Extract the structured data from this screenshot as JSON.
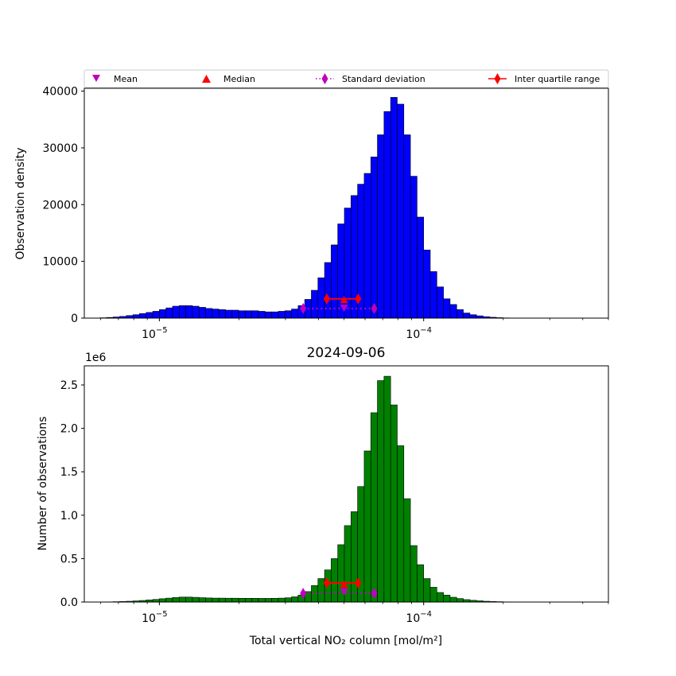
{
  "legend": {
    "items": [
      {
        "label": "Mean",
        "marker": "triangle-down",
        "color": "#bf00bf",
        "line": "none"
      },
      {
        "label": "Median",
        "marker": "triangle-up",
        "color": "#ff0000",
        "line": "none"
      },
      {
        "label": "Standard deviation",
        "marker": "thin-diamond",
        "color": "#bf00bf",
        "line": "dotted"
      },
      {
        "label": "Inter quartile range",
        "marker": "thin-diamond",
        "color": "#ff0000",
        "line": "solid"
      }
    ]
  },
  "chart_data": [
    {
      "type": "bar",
      "subtype": "histogram",
      "title": "",
      "xlabel": "",
      "ylabel": "Observation density",
      "xscale": "log",
      "xlim": [
        5.2e-06,
        0.0005
      ],
      "ylim": [
        0,
        40500
      ],
      "yticks": [
        0,
        10000,
        20000,
        30000,
        40000
      ],
      "ytick_labels": [
        "0",
        "10000",
        "20000",
        "30000",
        "40000"
      ],
      "xticks": [
        1e-05,
        0.0001
      ],
      "xtick_labels": [
        {
          "base": "10",
          "exp": "−5"
        },
        {
          "base": "10",
          "exp": "−4"
        }
      ],
      "offset_text": "",
      "bar_color": "#0000ff",
      "edge_color": "#000000",
      "x_start_log10": -5.25,
      "bin_width_log10": 0.025,
      "values": [
        20,
        60,
        120,
        200,
        300,
        450,
        600,
        800,
        1000,
        1200,
        1500,
        1800,
        2100,
        2200,
        2200,
        2100,
        1900,
        1700,
        1600,
        1500,
        1400,
        1400,
        1300,
        1300,
        1300,
        1200,
        1100,
        1100,
        1200,
        1300,
        1600,
        2200,
        3300,
        4900,
        7100,
        9800,
        12900,
        16600,
        19400,
        21600,
        23600,
        25500,
        28400,
        32300,
        36400,
        38900,
        37700,
        32300,
        25000,
        17800,
        12000,
        8200,
        5500,
        3400,
        2400,
        1500,
        900,
        600,
        400,
        250,
        150,
        80,
        40,
        20
      ],
      "markers": {
        "mean": {
          "x": 5e-05,
          "y": 1800
        },
        "median": {
          "x": 5e-05,
          "y": 3200
        },
        "std": {
          "x": [
            3.5e-05,
            6.5e-05
          ],
          "y": 1700
        },
        "iqr": {
          "x": [
            4.3e-05,
            5.65e-05
          ],
          "y": 3400
        }
      }
    },
    {
      "type": "bar",
      "subtype": "histogram",
      "title": "2024-09-06",
      "xlabel": "Total vertical NO₂ column [mol/m²]",
      "ylabel": "Number of observations",
      "xscale": "log",
      "xlim": [
        5.2e-06,
        0.0005
      ],
      "ylim": [
        0,
        2.72
      ],
      "yticks": [
        0,
        0.5,
        1.0,
        1.5,
        2.0,
        2.5
      ],
      "ytick_labels": [
        "0.0",
        "0.5",
        "1.0",
        "1.5",
        "2.0",
        "2.5"
      ],
      "xticks": [
        1e-05,
        0.0001
      ],
      "xtick_labels": [
        {
          "base": "10",
          "exp": "−5"
        },
        {
          "base": "10",
          "exp": "−4"
        }
      ],
      "offset_text": "1e6",
      "bar_color": "#008000",
      "edge_color": "#000000",
      "x_start_log10": -5.2,
      "bin_width_log10": 0.025,
      "values": [
        0.002,
        0.004,
        0.006,
        0.009,
        0.013,
        0.018,
        0.024,
        0.03,
        0.038,
        0.045,
        0.052,
        0.057,
        0.057,
        0.054,
        0.05,
        0.047,
        0.045,
        0.045,
        0.044,
        0.044,
        0.043,
        0.043,
        0.043,
        0.042,
        0.042,
        0.043,
        0.045,
        0.049,
        0.06,
        0.08,
        0.12,
        0.19,
        0.27,
        0.37,
        0.5,
        0.66,
        0.88,
        1.04,
        1.33,
        1.74,
        2.18,
        2.55,
        2.6,
        2.27,
        1.8,
        1.19,
        0.65,
        0.43,
        0.27,
        0.17,
        0.11,
        0.08,
        0.055,
        0.04,
        0.028,
        0.02,
        0.014,
        0.009,
        0.006,
        0.004,
        0.002
      ],
      "markers": {
        "mean": {
          "x": 5e-05,
          "y": 0.12
        },
        "median": {
          "x": 5e-05,
          "y": 0.2
        },
        "std": {
          "x": [
            3.5e-05,
            6.5e-05
          ],
          "y": 0.1
        },
        "iqr": {
          "x": [
            4.3e-05,
            5.65e-05
          ],
          "y": 0.22
        }
      }
    }
  ]
}
